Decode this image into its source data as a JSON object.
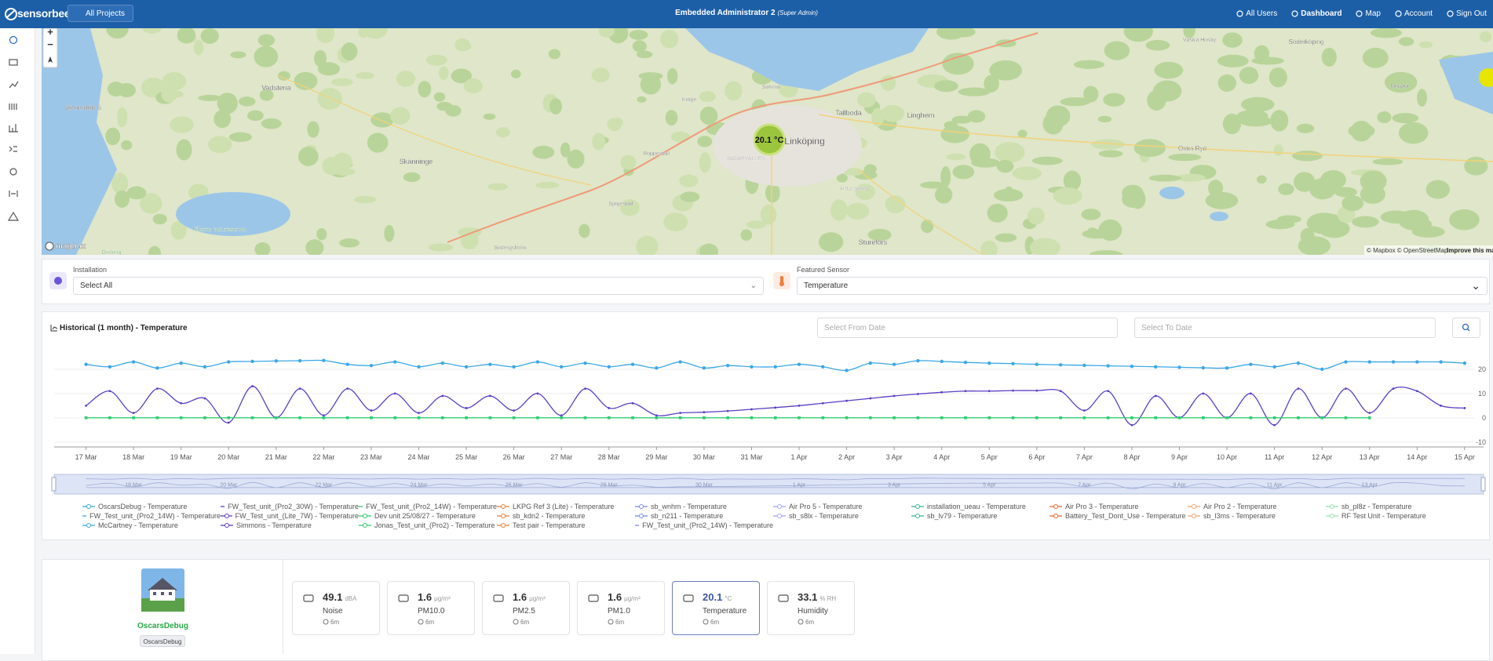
{
  "nav": {
    "brand": "sensorbee",
    "project_select": "All Projects",
    "title": "Embedded Administrator 2",
    "role": "(Super Admin)",
    "links": [
      "All Users",
      "Dashboard",
      "Map",
      "Account",
      "Sign Out"
    ]
  },
  "map": {
    "marker": "20.1 °C",
    "zoom_in": "+",
    "zoom_out": "−",
    "logo": "mapbox",
    "attribution": "© Mapbox © OpenStreetMap",
    "improve": "Improve this map",
    "places": [
      "Linköping",
      "Vadstena",
      "Skänninge",
      "Tallboda",
      "Linghem",
      "Sturefors",
      "Söderköping",
      "Östra Ryd",
      "Roppestad",
      "Sjögestad",
      "Södergsholm",
      "Sätuna",
      "Kröge",
      "Mogata",
      "Västra Husby",
      "JÄGARVALLEN",
      "HJULSBRO",
      "Tåkerns naturreservat",
      "Omberg",
      "skomrade 6"
    ]
  },
  "filters": {
    "installation_label": "Installation",
    "installation_value": "Select All",
    "sensor_label": "Featured Sensor",
    "sensor_value": "Temperature"
  },
  "history": {
    "from_placeholder": "Select From Date",
    "to_placeholder": "Select To Date"
  },
  "chart_data": {
    "type": "line",
    "title": "Historical (1 month) - Temperature",
    "x": [
      0,
      0.5,
      1,
      1.5,
      2,
      2.5,
      3,
      3.5,
      4,
      4.5,
      5,
      5.5,
      6,
      6.5,
      7,
      7.5,
      8,
      8.5,
      9,
      9.5,
      10,
      10.5,
      11,
      11.5,
      12,
      12.5,
      13,
      13.5,
      14,
      14.5,
      15,
      15.5,
      16,
      16.5,
      17,
      17.5,
      18,
      18.5,
      19,
      19.5,
      20,
      20.5,
      21,
      21.5,
      22,
      22.5,
      23,
      23.5,
      24,
      24.5,
      25,
      25.5,
      26,
      26.5,
      27,
      27.5,
      28,
      28.5,
      29
    ],
    "xlim": [
      -0.67,
      29.2
    ],
    "xticks": [
      {
        "value": 0,
        "label": "17 Mar"
      },
      {
        "value": 1,
        "label": "18 Mar"
      },
      {
        "value": 2,
        "label": "19 Mar"
      },
      {
        "value": 3,
        "label": "20 Mar"
      },
      {
        "value": 4,
        "label": "21 Mar"
      },
      {
        "value": 5,
        "label": "22 Mar"
      },
      {
        "value": 6,
        "label": "23 Mar"
      },
      {
        "value": 7,
        "label": "24 Mar"
      },
      {
        "value": 8,
        "label": "25 Mar"
      },
      {
        "value": 9,
        "label": "26 Mar"
      },
      {
        "value": 10,
        "label": "27 Mar"
      },
      {
        "value": 11,
        "label": "28 Mar"
      },
      {
        "value": 12,
        "label": "29 Mar"
      },
      {
        "value": 13,
        "label": "30 Mar"
      },
      {
        "value": 14,
        "label": "31 Mar"
      },
      {
        "value": 15,
        "label": "1 Apr"
      },
      {
        "value": 16,
        "label": "2 Apr"
      },
      {
        "value": 17,
        "label": "3 Apr"
      },
      {
        "value": 18,
        "label": "4 Apr"
      },
      {
        "value": 19,
        "label": "5 Apr"
      },
      {
        "value": 20,
        "label": "6 Apr"
      },
      {
        "value": 21,
        "label": "7 Apr"
      },
      {
        "value": 22,
        "label": "8 Apr"
      },
      {
        "value": 23,
        "label": "9 Apr"
      },
      {
        "value": 24,
        "label": "10 Apr"
      },
      {
        "value": 25,
        "label": "11 Apr"
      },
      {
        "value": 26,
        "label": "12 Apr"
      },
      {
        "value": 27,
        "label": "13 Apr"
      },
      {
        "value": 28,
        "label": "14 Apr"
      },
      {
        "value": 29,
        "label": "15 Apr"
      }
    ],
    "ylim": [
      -12,
      29
    ],
    "yticks": [
      -10,
      0,
      10,
      20
    ],
    "grid": true,
    "zoom_ticks": [
      {
        "value": 1,
        "label": "18 Mar"
      },
      {
        "value": 3,
        "label": "20 Mar"
      },
      {
        "value": 5,
        "label": "22 Mar"
      },
      {
        "value": 7,
        "label": "24 Mar"
      },
      {
        "value": 9,
        "label": "26 Mar"
      },
      {
        "value": 11,
        "label": "28 Mar"
      },
      {
        "value": 13,
        "label": "30 Mar"
      },
      {
        "value": 15,
        "label": "1 Apr"
      },
      {
        "value": 17,
        "label": "3 Apr"
      },
      {
        "value": 19,
        "label": "5 Apr"
      },
      {
        "value": 21,
        "label": "7 Apr"
      },
      {
        "value": 23,
        "label": "9 Apr"
      },
      {
        "value": 25,
        "label": "11 Apr"
      },
      {
        "value": 27,
        "label": "13 Apr"
      }
    ],
    "series": [
      {
        "name": "OscarsDebug - Temperature",
        "color": "#3ba7e6",
        "marker": "circle",
        "values": [
          22,
          21,
          23,
          20.5,
          22.5,
          21,
          23,
          23.2,
          23.4,
          23.5,
          23.6,
          22,
          21.5,
          23,
          21,
          22.5,
          21,
          22,
          21,
          23,
          21,
          22.5,
          21,
          22,
          20.5,
          23,
          20.5,
          21.5,
          21,
          21,
          22,
          21,
          19.5,
          22.5,
          22,
          23.5,
          23.2,
          22.8,
          22.5,
          22.3,
          22,
          21.8,
          21.6,
          21.4,
          21.2,
          21,
          20.8,
          20.6,
          20.5,
          22,
          21,
          22.5,
          20,
          23,
          23,
          23,
          23,
          23,
          22.5
        ]
      },
      {
        "name": "FW_Test_unit_(Pro2_30W) - Temperature",
        "color": "#5b3fc4",
        "marker": "dot",
        "values": [
          5,
          11,
          2,
          12,
          6,
          8,
          -2,
          13,
          0,
          12,
          1,
          12,
          3,
          10,
          2,
          9,
          4,
          9,
          3,
          10,
          1,
          12,
          4,
          6,
          1,
          2,
          2.3,
          2.8,
          3.5,
          4.2,
          5,
          6,
          7,
          8,
          9,
          9.8,
          10.5,
          11,
          11,
          11.2,
          11.2,
          11,
          3,
          11,
          -3,
          9,
          0,
          10,
          0,
          10,
          -3,
          12,
          0,
          12,
          2,
          12,
          11,
          5,
          4
        ]
      },
      {
        "name": "FW_Test_unit_(Pro2_14W) - Temperature",
        "color": "#2ecc71",
        "marker": "square",
        "values": [
          0,
          0,
          0,
          0,
          0,
          0,
          0,
          0,
          0,
          0,
          0,
          0,
          0,
          0,
          0,
          0,
          0,
          0,
          0,
          0,
          0,
          0,
          0,
          0,
          0,
          0,
          0,
          0,
          0,
          0,
          0,
          0,
          0,
          0,
          0,
          0,
          0,
          0,
          0,
          0,
          0,
          0,
          0,
          0,
          0,
          0,
          0,
          0,
          0,
          0,
          0,
          0,
          0,
          0,
          0,
          null,
          null,
          null,
          null
        ]
      },
      {
        "name": "LKPG Ref 3 (Lite) - Temperature",
        "color": "#f07c3a"
      },
      {
        "name": "sb_wnhm - Temperature",
        "color": "#7a8ce0"
      },
      {
        "name": "Air Pro 5 - Temperature",
        "color": "#a3a5ee"
      },
      {
        "name": "installation_ueau - Temperature",
        "color": "#3bb39b"
      },
      {
        "name": "Air Pro 3 - Temperature",
        "color": "#f0642d"
      },
      {
        "name": "Air Pro 2 - Temperature",
        "color": "#f5a46b"
      },
      {
        "name": "sb_pl8z - Temperature",
        "color": "#9be0b0"
      },
      {
        "name": "FW_Test_unit_(Pro2_14W) - Temperature",
        "color": "#3ba7e6"
      },
      {
        "name": "FW_Test_unit_(Lite_7W) - Temperature",
        "color": "#5b3fc4"
      },
      {
        "name": "Dev unit 25/08/27 - Temperature",
        "color": "#2ecc71"
      },
      {
        "name": "sb_kdn2 - Temperature",
        "color": "#f07c3a"
      },
      {
        "name": "sb_n211 - Temperature",
        "color": "#7a8ce0"
      },
      {
        "name": "sb_s8lx - Temperature",
        "color": "#a3a5ee"
      },
      {
        "name": "sb_lv79 - Temperature",
        "color": "#3bb39b"
      },
      {
        "name": "Battery_Test_Dont_Use - Temperature",
        "color": "#f0642d"
      },
      {
        "name": "sb_l3ms - Temperature",
        "color": "#f5a46b"
      },
      {
        "name": "RF Test Unit - Temperature",
        "color": "#9be0b0"
      },
      {
        "name": "McCartney - Temperature",
        "color": "#3ba7e6"
      },
      {
        "name": "Simmons - Temperature",
        "color": "#5b3fc4"
      },
      {
        "name": "Jonas_Test_unit_(Pro2) - Temperature",
        "color": "#2ecc71"
      },
      {
        "name": "Test pair - Temperature",
        "color": "#f07c3a"
      },
      {
        "name": "FW_Test_unit_(Pro2_14W) - Temperature",
        "color": "#7a8ce0"
      }
    ]
  },
  "device": {
    "name": "OscarsDebug",
    "badge": "OscarsDebug"
  },
  "readings": {
    "selected": 4,
    "items": [
      {
        "value": 49.1,
        "unit": "dBA",
        "label": "Noise",
        "age": "6m"
      },
      {
        "value": 1.6,
        "unit": "μg/m³",
        "label": "PM10.0",
        "age": "6m"
      },
      {
        "value": 1.6,
        "unit": "μg/m³",
        "label": "PM2.5",
        "age": "6m"
      },
      {
        "value": 1.6,
        "unit": "μg/m³",
        "label": "PM1.0",
        "age": "6m"
      },
      {
        "value": 20.1,
        "unit": "°C",
        "label": "Temperature",
        "age": "6m"
      },
      {
        "value": 33.1,
        "unit": "% RH",
        "label": "Humidity",
        "age": "6m"
      }
    ]
  }
}
